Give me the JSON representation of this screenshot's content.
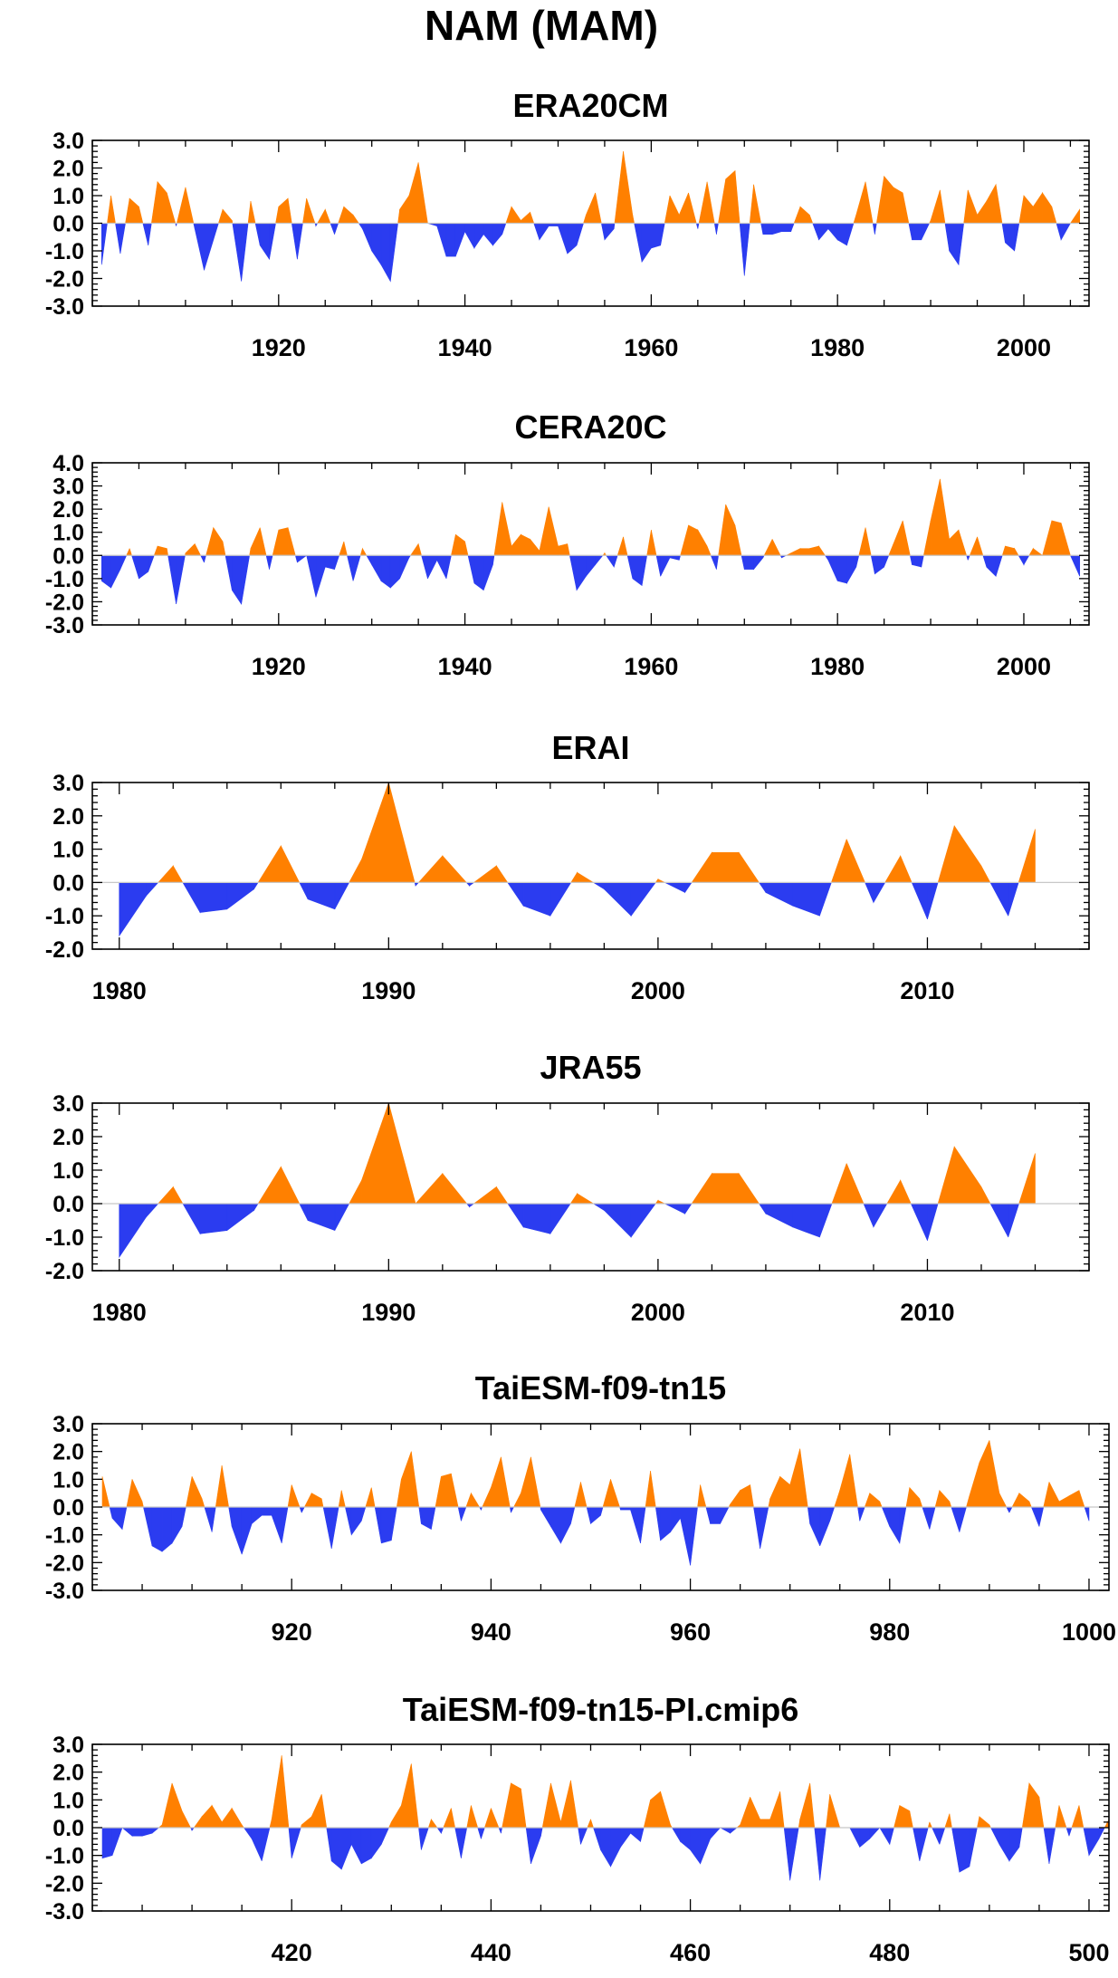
{
  "figure": {
    "title": "NAM (MAM)"
  },
  "colors": {
    "positive": "#ff8000",
    "negative": "#2b3cf0",
    "axis": "#000000",
    "zero_line": "#c8c8c8"
  },
  "chart_data": [
    {
      "type": "area",
      "title": "ERA20CM",
      "xlabel": "",
      "ylabel": "",
      "xlim": [
        1900,
        2007
      ],
      "ylim": [
        -3.0,
        3.0
      ],
      "yticks": [
        -3.0,
        -2.0,
        -1.0,
        0.0,
        1.0,
        2.0,
        3.0
      ],
      "ytick_labels": [
        "-3.0",
        "-2.0",
        "-1.0",
        "0.0",
        "1.0",
        "2.0",
        "3.0"
      ],
      "xticks": [
        1920,
        1940,
        1960,
        1980,
        2000
      ],
      "xtick_labels": [
        "1920",
        "1940",
        "1960",
        "1980",
        "2000"
      ],
      "minor_x_step": 5,
      "x_start": 1901,
      "values": [
        -1.5,
        1.0,
        -1.1,
        0.9,
        0.6,
        -0.8,
        1.5,
        1.1,
        -0.1,
        1.3,
        -0.2,
        -1.7,
        -0.6,
        0.5,
        0.1,
        -2.1,
        0.8,
        -0.8,
        -1.3,
        0.6,
        0.9,
        -1.3,
        0.9,
        -0.1,
        0.5,
        -0.4,
        0.6,
        0.3,
        -0.2,
        -1.0,
        -1.5,
        -2.1,
        0.5,
        1.0,
        2.2,
        0.0,
        -0.1,
        -1.2,
        -1.2,
        -0.3,
        -0.9,
        -0.4,
        -0.8,
        -0.4,
        0.6,
        0.1,
        0.4,
        -0.6,
        -0.1,
        -0.1,
        -1.1,
        -0.8,
        0.3,
        1.1,
        -0.6,
        -0.2,
        2.6,
        0.3,
        -1.4,
        -0.9,
        -0.8,
        1.0,
        0.3,
        1.1,
        -0.2,
        1.5,
        -0.4,
        1.6,
        1.9,
        -1.9,
        1.4,
        -0.4,
        -0.4,
        -0.3,
        -0.3,
        0.6,
        0.3,
        -0.6,
        -0.2,
        -0.6,
        -0.8,
        0.3,
        1.5,
        -0.4,
        1.7,
        1.3,
        1.1,
        -0.6,
        -0.6,
        0.1,
        1.2,
        -1.0,
        -1.5,
        1.2,
        0.3,
        0.8,
        1.4,
        -0.7,
        -1.0,
        1.0,
        0.6,
        1.1,
        0.6,
        -0.6,
        0.0,
        0.5
      ]
    },
    {
      "type": "area",
      "title": "CERA20C",
      "xlabel": "",
      "ylabel": "",
      "xlim": [
        1900,
        2007
      ],
      "ylim": [
        -3.0,
        4.0
      ],
      "yticks": [
        -3.0,
        -2.0,
        -1.0,
        0.0,
        1.0,
        2.0,
        3.0,
        4.0
      ],
      "ytick_labels": [
        "-3.0",
        "-2.0",
        "-1.0",
        "0.0",
        "1.0",
        "2.0",
        "3.0",
        "4.0"
      ],
      "xticks": [
        1920,
        1940,
        1960,
        1980,
        2000
      ],
      "xtick_labels": [
        "1920",
        "1940",
        "1960",
        "1980",
        "2000"
      ],
      "minor_x_step": 5,
      "x_start": 1901,
      "values": [
        -1.1,
        -1.4,
        -0.6,
        0.3,
        -1.0,
        -0.7,
        0.4,
        0.3,
        -2.1,
        0.1,
        0.5,
        -0.3,
        1.2,
        0.6,
        -1.5,
        -2.1,
        0.3,
        1.2,
        -0.6,
        1.1,
        1.2,
        -0.3,
        0.0,
        -1.8,
        -0.5,
        -0.6,
        0.6,
        -1.1,
        0.3,
        -0.4,
        -1.1,
        -1.4,
        -1.0,
        -0.1,
        0.5,
        -1.0,
        -0.2,
        -1.0,
        0.9,
        0.6,
        -1.2,
        -1.5,
        -0.4,
        2.3,
        0.4,
        0.9,
        0.7,
        0.2,
        2.1,
        0.4,
        0.5,
        -1.5,
        -0.9,
        -0.4,
        0.1,
        -0.5,
        0.8,
        -1.0,
        -1.3,
        1.1,
        -0.9,
        -0.1,
        -0.2,
        1.3,
        1.1,
        0.4,
        -0.6,
        2.2,
        1.3,
        -0.6,
        -0.6,
        -0.1,
        0.7,
        -0.1,
        0.1,
        0.3,
        0.3,
        0.4,
        -0.2,
        -1.1,
        -1.2,
        -0.5,
        1.2,
        -0.8,
        -0.5,
        0.5,
        1.5,
        -0.4,
        -0.5,
        1.5,
        3.3,
        0.7,
        1.1,
        -0.2,
        0.8,
        -0.5,
        -0.9,
        0.4,
        0.3,
        -0.4,
        0.3,
        0.0,
        1.5,
        1.4,
        0.0,
        -0.9
      ]
    },
    {
      "type": "area",
      "title": "ERAI",
      "xlabel": "",
      "ylabel": "",
      "xlim": [
        1979,
        2016
      ],
      "ylim": [
        -2.0,
        3.0
      ],
      "yticks": [
        -2.0,
        -1.0,
        0.0,
        1.0,
        2.0,
        3.0
      ],
      "ytick_labels": [
        "-2.0",
        "-1.0",
        "0.0",
        "1.0",
        "2.0",
        "3.0"
      ],
      "xticks": [
        1980,
        1990,
        2000,
        2010
      ],
      "xtick_labels": [
        "1980",
        "1990",
        "2000",
        "2010"
      ],
      "minor_x_step": 2,
      "x_start": 1980,
      "values": [
        -1.6,
        -0.4,
        0.5,
        -0.9,
        -0.8,
        -0.2,
        1.1,
        -0.5,
        -0.8,
        0.7,
        3.0,
        -0.1,
        0.8,
        -0.1,
        0.5,
        -0.7,
        -1.0,
        0.3,
        -0.2,
        -1.0,
        0.1,
        -0.3,
        0.9,
        0.9,
        -0.3,
        -0.7,
        -1.0,
        1.3,
        -0.6,
        0.8,
        -1.1,
        1.7,
        0.5,
        -1.0,
        1.6
      ]
    },
    {
      "type": "area",
      "title": "JRA55",
      "xlabel": "",
      "ylabel": "",
      "xlim": [
        1979,
        2016
      ],
      "ylim": [
        -2.0,
        3.0
      ],
      "yticks": [
        -2.0,
        -1.0,
        0.0,
        1.0,
        2.0,
        3.0
      ],
      "ytick_labels": [
        "-2.0",
        "-1.0",
        "0.0",
        "1.0",
        "2.0",
        "3.0"
      ],
      "xticks": [
        1980,
        1990,
        2000,
        2010
      ],
      "xtick_labels": [
        "1980",
        "1990",
        "2000",
        "2010"
      ],
      "minor_x_step": 2,
      "x_start": 1980,
      "values": [
        -1.6,
        -0.4,
        0.5,
        -0.9,
        -0.8,
        -0.2,
        1.1,
        -0.5,
        -0.8,
        0.7,
        3.0,
        0.0,
        0.9,
        -0.1,
        0.5,
        -0.7,
        -0.9,
        0.3,
        -0.2,
        -1.0,
        0.1,
        -0.3,
        0.9,
        0.9,
        -0.3,
        -0.7,
        -1.0,
        1.2,
        -0.7,
        0.7,
        -1.1,
        1.7,
        0.5,
        -1.0,
        1.5
      ]
    },
    {
      "type": "area",
      "title": "TaiESM-f09-tn15",
      "xlabel": "",
      "ylabel": "",
      "xlim": [
        900,
        1002
      ],
      "ylim": [
        -3.0,
        3.0
      ],
      "yticks": [
        -3.0,
        -2.0,
        -1.0,
        0.0,
        1.0,
        2.0,
        3.0
      ],
      "ytick_labels": [
        "-3.0",
        "-2.0",
        "-1.0",
        "0.0",
        "1.0",
        "2.0",
        "3.0"
      ],
      "xticks": [
        920,
        940,
        960,
        980,
        1000
      ],
      "xtick_labels": [
        "920",
        "940",
        "960",
        "980",
        "1000"
      ],
      "minor_x_step": 5,
      "x_start": 901,
      "values": [
        1.1,
        -0.4,
        -0.8,
        1.0,
        0.2,
        -1.4,
        -1.6,
        -1.3,
        -0.7,
        1.1,
        0.3,
        -0.9,
        1.5,
        -0.7,
        -1.7,
        -0.6,
        -0.3,
        -0.3,
        -1.3,
        0.8,
        -0.2,
        0.5,
        0.3,
        -1.5,
        0.6,
        -1.0,
        -0.5,
        0.7,
        -1.3,
        -1.2,
        1.0,
        2.0,
        -0.6,
        -0.8,
        1.1,
        1.2,
        -0.5,
        0.5,
        -0.1,
        0.7,
        1.8,
        -0.2,
        0.5,
        1.8,
        -0.1,
        -0.7,
        -1.3,
        -0.6,
        0.9,
        -0.6,
        -0.3,
        1.0,
        -0.1,
        -0.1,
        -1.3,
        1.3,
        -1.2,
        -0.9,
        -0.4,
        -2.1,
        0.8,
        -0.6,
        -0.6,
        0.1,
        0.6,
        0.8,
        -1.5,
        0.3,
        1.1,
        0.8,
        2.1,
        -0.6,
        -1.4,
        -0.5,
        0.6,
        1.9,
        -0.5,
        0.5,
        0.2,
        -0.7,
        -1.3,
        0.7,
        0.3,
        -0.8,
        0.6,
        0.2,
        -0.9,
        0.4,
        1.6,
        2.4,
        0.5,
        -0.2,
        0.5,
        0.2,
        -0.7,
        0.9,
        0.2,
        0.4,
        0.6,
        -0.5
      ]
    },
    {
      "type": "area",
      "title": "TaiESM-f09-tn15-PI.cmip6",
      "xlabel": "",
      "ylabel": "",
      "xlim": [
        400,
        502
      ],
      "ylim": [
        -3.0,
        3.0
      ],
      "yticks": [
        -3.0,
        -2.0,
        -1.0,
        0.0,
        1.0,
        2.0,
        3.0
      ],
      "ytick_labels": [
        "-3.0",
        "-2.0",
        "-1.0",
        "0.0",
        "1.0",
        "2.0",
        "3.0"
      ],
      "xticks": [
        420,
        440,
        460,
        480,
        500
      ],
      "xtick_labels": [
        "420",
        "440",
        "460",
        "480",
        "500"
      ],
      "minor_x_step": 5,
      "x_start": 401,
      "values": [
        -1.1,
        -1.0,
        0.0,
        -0.3,
        -0.3,
        -0.2,
        0.1,
        1.6,
        0.6,
        -0.1,
        0.4,
        0.8,
        0.2,
        0.7,
        0.1,
        -0.4,
        -1.2,
        0.3,
        2.6,
        -1.1,
        0.1,
        0.4,
        1.2,
        -1.2,
        -1.5,
        -0.6,
        -1.3,
        -1.1,
        -0.6,
        0.2,
        0.8,
        2.3,
        -0.8,
        0.3,
        -0.2,
        0.7,
        -1.1,
        0.8,
        -0.4,
        0.7,
        -0.2,
        1.6,
        1.4,
        -1.3,
        -0.3,
        1.6,
        0.2,
        1.7,
        -0.6,
        0.3,
        -0.8,
        -1.4,
        -0.7,
        -0.2,
        -0.5,
        1.0,
        1.3,
        0.1,
        -0.5,
        -0.8,
        -1.3,
        -0.4,
        0.0,
        -0.2,
        0.1,
        1.1,
        0.3,
        0.3,
        1.3,
        -1.9,
        0.3,
        1.6,
        -1.9,
        1.2,
        0.0,
        0.0,
        -0.7,
        -0.4,
        0.0,
        -0.6,
        0.8,
        0.6,
        -1.2,
        0.2,
        -0.6,
        0.5,
        -1.6,
        -1.4,
        0.4,
        0.1,
        -0.6,
        -1.2,
        -0.7,
        1.6,
        1.1,
        -1.3,
        0.8,
        -0.3,
        0.8,
        -1.0,
        -0.4,
        0.3
      ]
    }
  ]
}
